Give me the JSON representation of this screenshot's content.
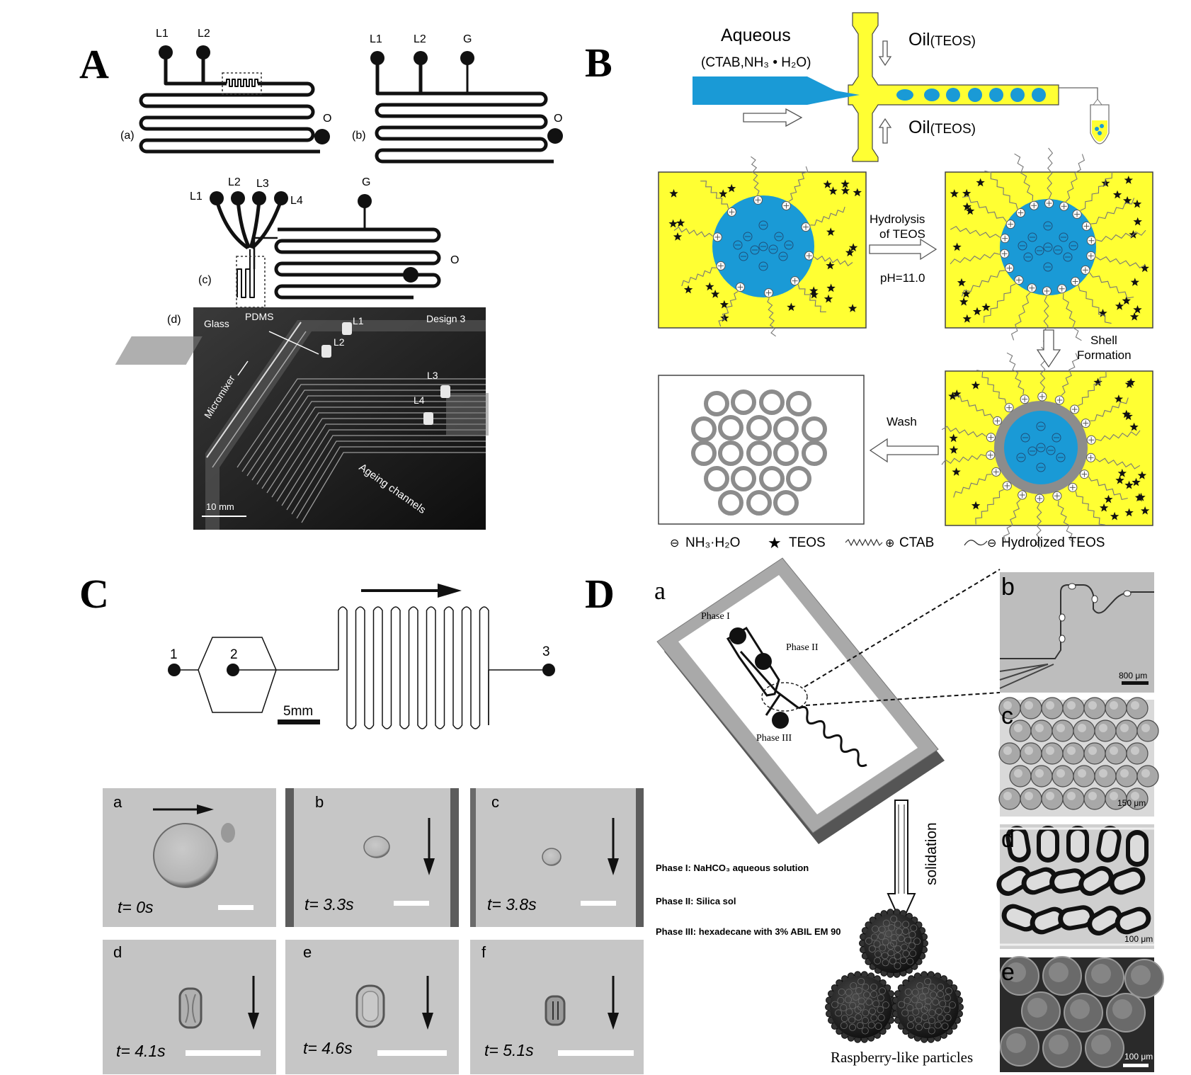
{
  "colors": {
    "blue": "#1a9ad6",
    "yellow": "#ffff33",
    "yellow_dark": "#f3e600",
    "gray": "#8c8c8c",
    "dark": "#111111"
  },
  "panelA": {
    "letter": "A",
    "design_a": {
      "tag": "(a)",
      "inlets": [
        "L1",
        "L2"
      ],
      "outlet": "O"
    },
    "design_b": {
      "tag": "(b)",
      "inlets": [
        "L1",
        "L2",
        "G"
      ],
      "outlet": "O"
    },
    "design_c": {
      "tag": "(c)",
      "inlets": [
        "L1",
        "L2",
        "L3",
        "L4"
      ],
      "gas": "G",
      "outlet": "O"
    },
    "photo": {
      "tag": "(d)",
      "design": "Design 3",
      "labels": {
        "glass": "Glass",
        "pdms": "PDMS",
        "micromixer": "Micromixer",
        "ageing": "Ageing channels",
        "l1": "L1",
        "l2": "L2",
        "l3": "L3",
        "l4": "L4"
      },
      "scale": "10 mm"
    }
  },
  "panelB": {
    "letter": "B",
    "aqueous": "Aqueous",
    "aqueous_sub": "(CTAB,NH₃ • H₂O)",
    "oil_top": "Oil",
    "oil_top_sub": "(TEOS)",
    "oil_bottom": "Oil",
    "oil_bottom_sub": "(TEOS)",
    "step1_line1": "Hydrolysis",
    "step1_line2": "of TEOS",
    "step1_ph": "pH=11.0",
    "step2_line1": "Shell",
    "step2_line2": "Formation",
    "step3": "Wash",
    "legend": [
      {
        "symbol": "⊖",
        "text": "NH₃·H₂O"
      },
      {
        "symbol": "★",
        "text": "TEOS"
      },
      {
        "symbol": "⊕",
        "text": "CTAB"
      },
      {
        "symbol": "⊖",
        "text": "Hydrolized TEOS"
      }
    ]
  },
  "panelC": {
    "letter": "C",
    "ports": [
      "1",
      "2",
      "3"
    ],
    "scale": "5mm",
    "frames": [
      {
        "tag": "a",
        "time": "t= 0s"
      },
      {
        "tag": "b",
        "time": "t= 3.3s"
      },
      {
        "tag": "c",
        "time": "t= 3.8s"
      },
      {
        "tag": "d",
        "time": "t= 4.1s"
      },
      {
        "tag": "e",
        "time": "t= 4.6s"
      },
      {
        "tag": "f",
        "time": "t= 5.1s"
      }
    ]
  },
  "panelD": {
    "letter": "D",
    "sub_a": "a",
    "phase1": "Phase I",
    "phase2": "Phase II",
    "phase3": "Phase III",
    "solidation": "solidation",
    "legend1": "Phase I: NaHCO₃ aqueous solution",
    "legend2": "Phase II: Silica sol",
    "legend3": "Phase III: hexadecane with 3% ABIL EM 90",
    "particles": "Raspberry-like particles",
    "sub_b": "b",
    "scale_b": "800 μm",
    "sub_c": "c",
    "scale_c": "150 μm",
    "sub_d": "d",
    "scale_d": "100 μm",
    "sub_e": "e",
    "scale_e": "100 μm"
  }
}
